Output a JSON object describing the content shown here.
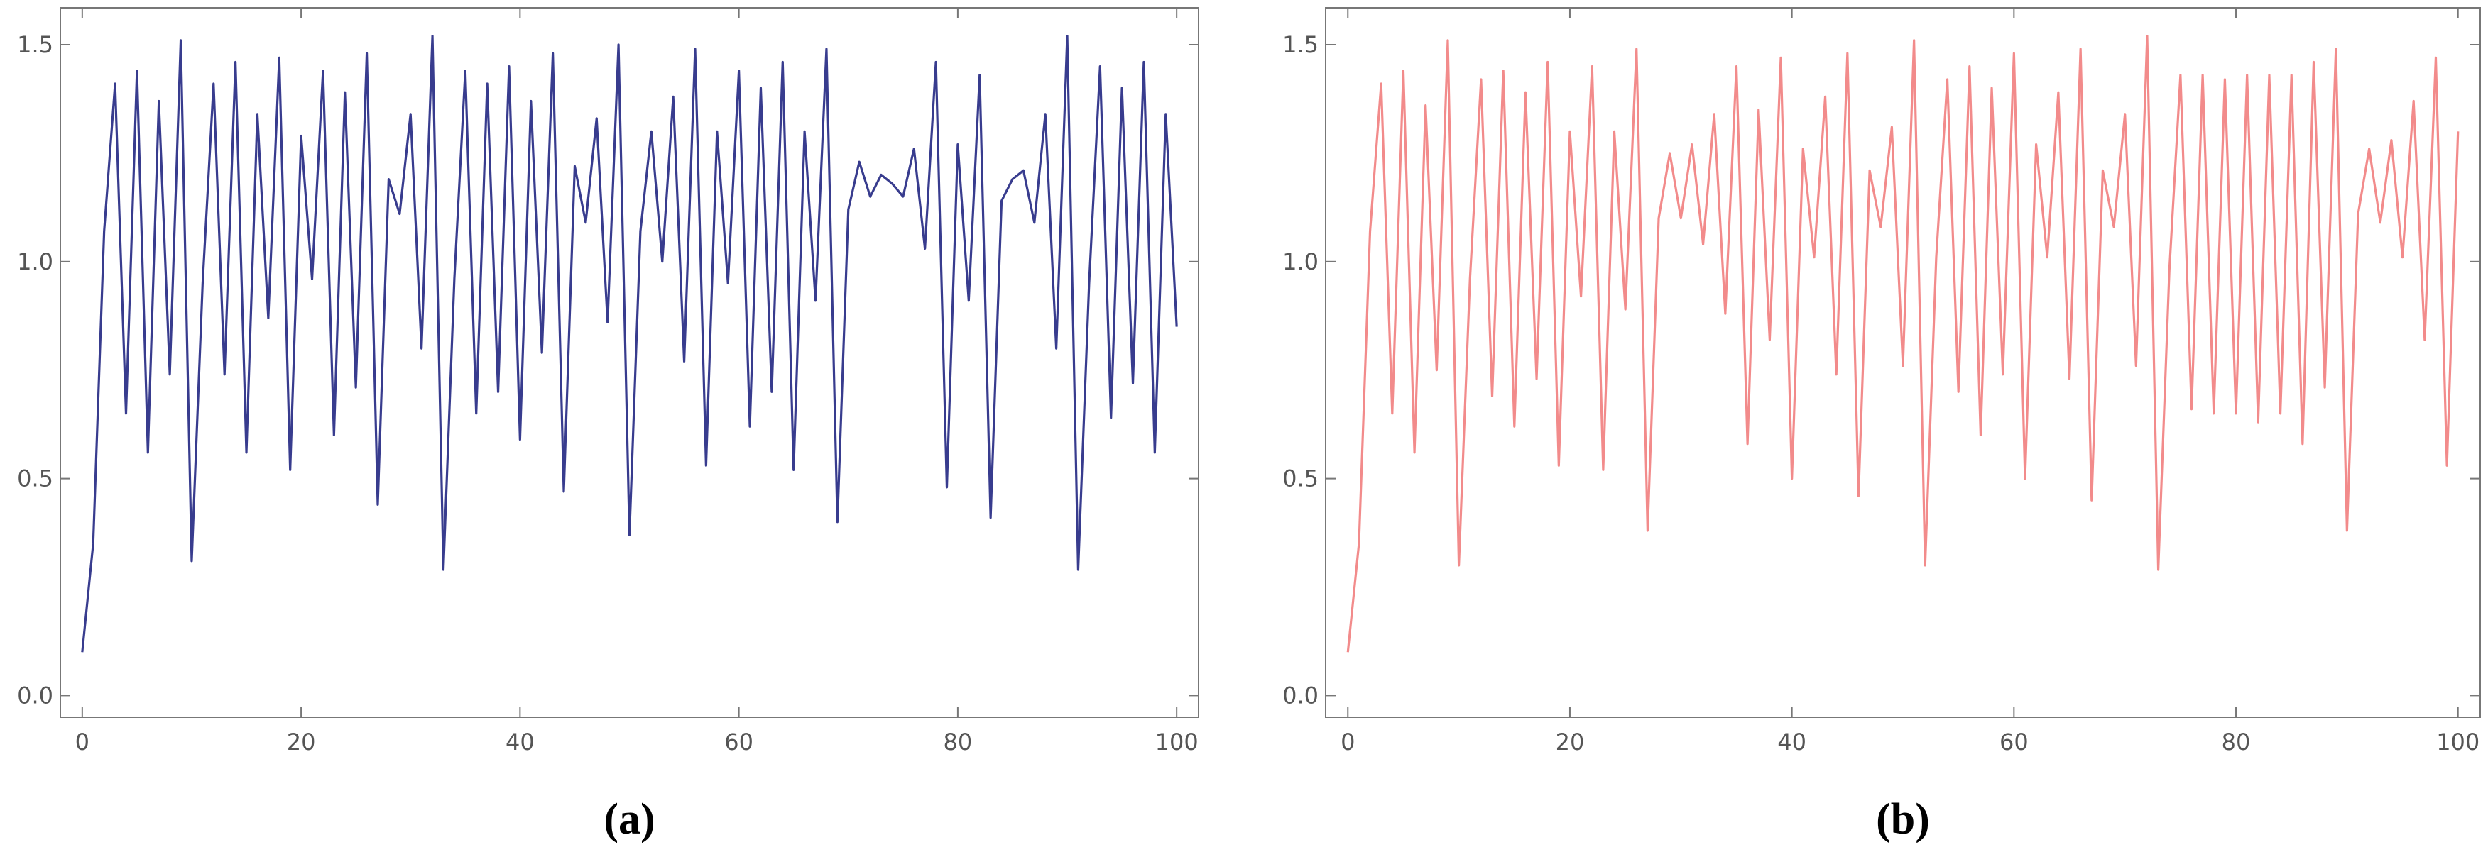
{
  "chart_data": [
    {
      "type": "line",
      "caption": "(a)",
      "color": "#383c8e",
      "x": [
        0,
        1,
        2,
        3,
        4,
        5,
        6,
        7,
        8,
        9,
        10,
        11,
        12,
        13,
        14,
        15,
        16,
        17,
        18,
        19,
        20,
        21,
        22,
        23,
        24,
        25,
        26,
        27,
        28,
        29,
        30,
        31,
        32,
        33,
        34,
        35,
        36,
        37,
        38,
        39,
        40,
        41,
        42,
        43,
        44,
        45,
        46,
        47,
        48,
        49,
        50,
        51,
        52,
        53,
        54,
        55,
        56,
        57,
        58,
        59,
        60,
        61,
        62,
        63,
        64,
        65,
        66,
        67,
        68,
        69,
        70,
        71,
        72,
        73,
        74,
        75,
        76,
        77,
        78,
        79,
        80,
        81,
        82,
        83,
        84,
        85,
        86,
        87,
        88,
        89,
        90,
        91,
        92,
        93,
        94,
        95,
        96,
        97,
        98,
        99,
        100
      ],
      "values": [
        0.1,
        0.35,
        1.07,
        1.41,
        0.65,
        1.44,
        0.56,
        1.37,
        0.74,
        1.51,
        0.31,
        0.95,
        1.41,
        0.74,
        1.46,
        0.56,
        1.34,
        0.87,
        1.47,
        0.52,
        1.29,
        0.96,
        1.44,
        0.6,
        1.39,
        0.71,
        1.48,
        0.44,
        1.19,
        1.11,
        1.34,
        0.8,
        1.52,
        0.29,
        0.96,
        1.44,
        0.65,
        1.41,
        0.7,
        1.45,
        0.59,
        1.37,
        0.79,
        1.48,
        0.47,
        1.22,
        1.09,
        1.33,
        0.86,
        1.5,
        0.37,
        1.07,
        1.3,
        1.0,
        1.38,
        0.77,
        1.49,
        0.53,
        1.3,
        0.95,
        1.44,
        0.62,
        1.4,
        0.7,
        1.46,
        0.52,
        1.3,
        0.91,
        1.49,
        0.4,
        1.12,
        1.23,
        1.15,
        1.2,
        1.18,
        1.15,
        1.26,
        1.03,
        1.46,
        0.48,
        1.27,
        0.91,
        1.43,
        0.41,
        1.14,
        1.19,
        1.21,
        1.09,
        1.34,
        0.8,
        1.52,
        0.29,
        0.95,
        1.45,
        0.64,
        1.4,
        0.72,
        1.46,
        0.56,
        1.34,
        0.85
      ],
      "xlim": [
        -2,
        102
      ],
      "ylim": [
        -0.05,
        1.585
      ],
      "xticks": [
        0,
        20,
        40,
        60,
        80,
        100
      ],
      "yticks": [
        {
          "value": 0,
          "label": "0.0"
        },
        0.5,
        {
          "value": 1,
          "label": "1.0"
        },
        1.5
      ]
    },
    {
      "type": "line",
      "caption": "(b)",
      "color": "#f28b8b",
      "x": [
        0,
        1,
        2,
        3,
        4,
        5,
        6,
        7,
        8,
        9,
        10,
        11,
        12,
        13,
        14,
        15,
        16,
        17,
        18,
        19,
        20,
        21,
        22,
        23,
        24,
        25,
        26,
        27,
        28,
        29,
        30,
        31,
        32,
        33,
        34,
        35,
        36,
        37,
        38,
        39,
        40,
        41,
        42,
        43,
        44,
        45,
        46,
        47,
        48,
        49,
        50,
        51,
        52,
        53,
        54,
        55,
        56,
        57,
        58,
        59,
        60,
        61,
        62,
        63,
        64,
        65,
        66,
        67,
        68,
        69,
        70,
        71,
        72,
        73,
        74,
        75,
        76,
        77,
        78,
        79,
        80,
        81,
        82,
        83,
        84,
        85,
        86,
        87,
        88,
        89,
        90,
        91,
        92,
        93,
        94,
        95,
        96,
        97,
        98,
        99,
        100
      ],
      "values": [
        0.1,
        0.35,
        1.07,
        1.41,
        0.65,
        1.44,
        0.56,
        1.36,
        0.75,
        1.51,
        0.3,
        0.96,
        1.42,
        0.69,
        1.44,
        0.62,
        1.39,
        0.73,
        1.46,
        0.53,
        1.3,
        0.92,
        1.45,
        0.52,
        1.3,
        0.89,
        1.49,
        0.38,
        1.1,
        1.25,
        1.1,
        1.27,
        1.04,
        1.34,
        0.88,
        1.45,
        0.58,
        1.35,
        0.82,
        1.47,
        0.5,
        1.26,
        1.01,
        1.38,
        0.74,
        1.48,
        0.46,
        1.21,
        1.08,
        1.31,
        0.76,
        1.51,
        0.3,
        1.01,
        1.42,
        0.7,
        1.45,
        0.6,
        1.4,
        0.74,
        1.48,
        0.5,
        1.27,
        1.01,
        1.39,
        0.73,
        1.49,
        0.45,
        1.21,
        1.08,
        1.34,
        0.76,
        1.52,
        0.29,
        0.98,
        1.43,
        0.66,
        1.43,
        0.65,
        1.42,
        0.65,
        1.43,
        0.63,
        1.43,
        0.65,
        1.43,
        0.58,
        1.46,
        0.71,
        1.49,
        0.38,
        1.11,
        1.26,
        1.09,
        1.28,
        1.01,
        1.37,
        0.82,
        1.47,
        0.53,
        1.3
      ],
      "xlim": [
        -2,
        102
      ],
      "ylim": [
        -0.05,
        1.585
      ],
      "xticks": [
        0,
        20,
        40,
        60,
        80,
        100
      ],
      "yticks": [
        {
          "value": 0,
          "label": "0.0"
        },
        0.5,
        {
          "value": 1,
          "label": "1.0"
        },
        1.5
      ]
    }
  ]
}
